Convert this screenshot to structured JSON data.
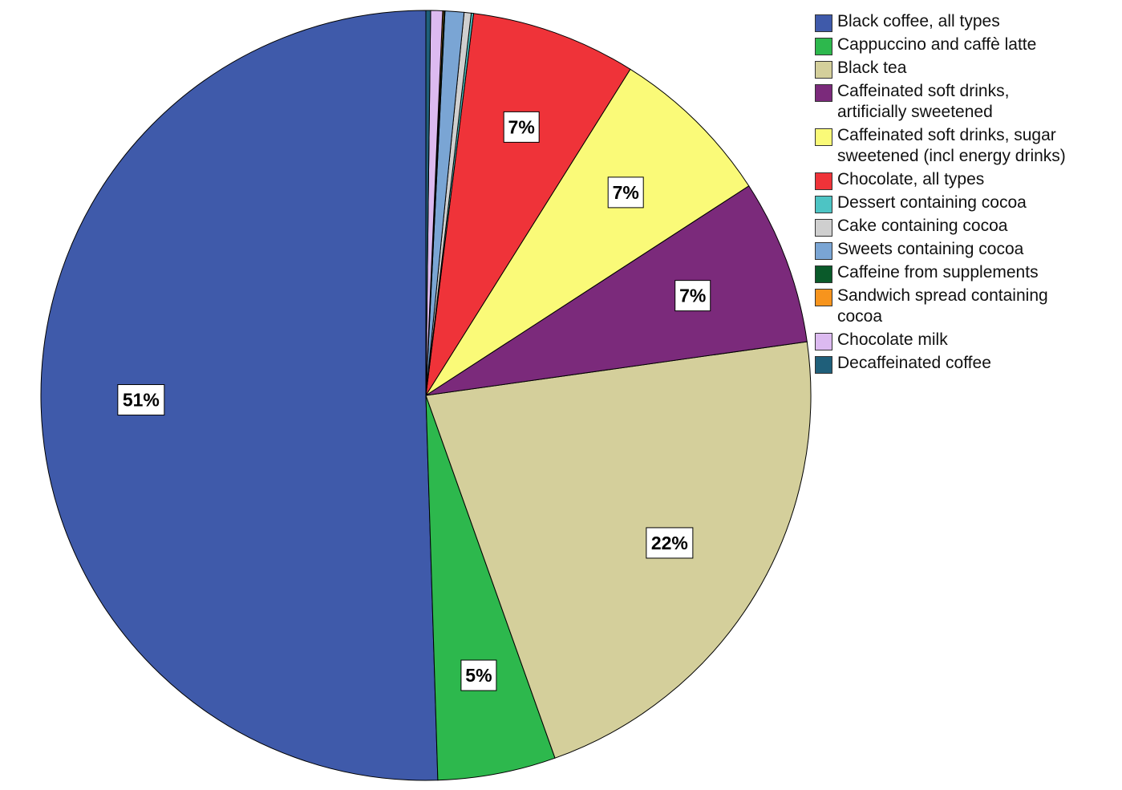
{
  "chart_data": {
    "type": "pie",
    "title": "",
    "slices": [
      {
        "label": "Black coffee, all types",
        "value": 51,
        "display": "51%",
        "color": "#3f5aaa"
      },
      {
        "label": "Cappuccino and caffè latte",
        "value": 5,
        "display": "5%",
        "color": "#2db84d"
      },
      {
        "label": "Black tea",
        "value": 22,
        "display": "22%",
        "color": "#d4cf9b"
      },
      {
        "label": "Caffeinated soft drinks,\nartificially sweetened",
        "value": 7,
        "display": "7%",
        "color": "#7b2a7b"
      },
      {
        "label": "Caffeinated soft drinks, sugar\nsweetened (incl energy drinks)",
        "value": 7,
        "display": "7%",
        "color": "#fafa78"
      },
      {
        "label": "Chocolate, all types",
        "value": 7,
        "display": "7%",
        "color": "#ef3339"
      },
      {
        "label": "Dessert containing cocoa",
        "value": 0.1,
        "display": "",
        "color": "#4dc4c4"
      },
      {
        "label": "Cake containing cocoa",
        "value": 0.3,
        "display": "",
        "color": "#cfcfcf"
      },
      {
        "label": "Sweets containing cocoa",
        "value": 0.8,
        "display": "",
        "color": "#7aa5d4"
      },
      {
        "label": "Caffeine from supplements",
        "value": 0.05,
        "display": "",
        "color": "#0a5a2a"
      },
      {
        "label": "Sandwich spread containing\ncocoa",
        "value": 0.05,
        "display": "",
        "color": "#f7941d"
      },
      {
        "label": "Chocolate milk",
        "value": 0.5,
        "display": "",
        "color": "#dcbaf0"
      },
      {
        "label": "Decaffeinated coffee",
        "value": 0.2,
        "display": "",
        "color": "#1f5f7a"
      }
    ],
    "start": "12 o'clock, counterclockwise",
    "legend_position": "top-right"
  }
}
